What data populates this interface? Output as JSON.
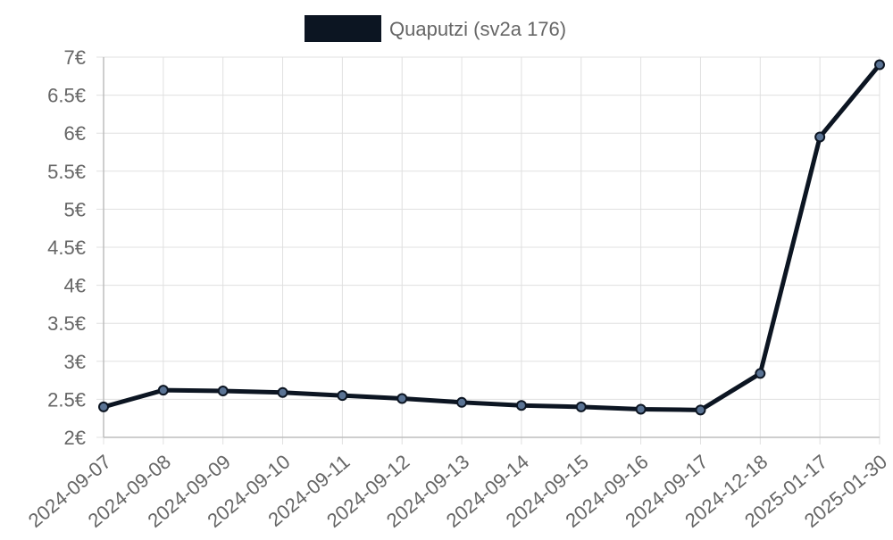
{
  "chart_data": {
    "type": "line",
    "legend": {
      "position": "top",
      "items": [
        {
          "label": "Quaputzi (sv2a 176)",
          "color": "#0c1522"
        }
      ]
    },
    "categories": [
      "2024-09-07",
      "2024-09-08",
      "2024-09-09",
      "2024-09-10",
      "2024-09-11",
      "2024-09-12",
      "2024-09-13",
      "2024-09-14",
      "2024-09-15",
      "2024-09-16",
      "2024-09-17",
      "2024-12-18",
      "2025-01-17",
      "2025-01-30"
    ],
    "series": [
      {
        "name": "Quaputzi (sv2a 176)",
        "color": "#0c1522",
        "point_color": "#5a7394",
        "values": [
          2.4,
          2.62,
          2.61,
          2.59,
          2.55,
          2.51,
          2.46,
          2.42,
          2.4,
          2.37,
          2.36,
          2.84,
          5.95,
          6.9
        ]
      }
    ],
    "y_ticks": [
      "2€",
      "2.5€",
      "3€",
      "3.5€",
      "4€",
      "4.5€",
      "5€",
      "5.5€",
      "6€",
      "6.5€",
      "7€"
    ],
    "y_tick_values": [
      2,
      2.5,
      3,
      3.5,
      4,
      4.5,
      5,
      5.5,
      6,
      6.5,
      7
    ],
    "ylim": [
      2,
      7
    ],
    "y_unit_suffix": "€",
    "grid": true,
    "title": "",
    "xlabel": "",
    "ylabel": ""
  }
}
